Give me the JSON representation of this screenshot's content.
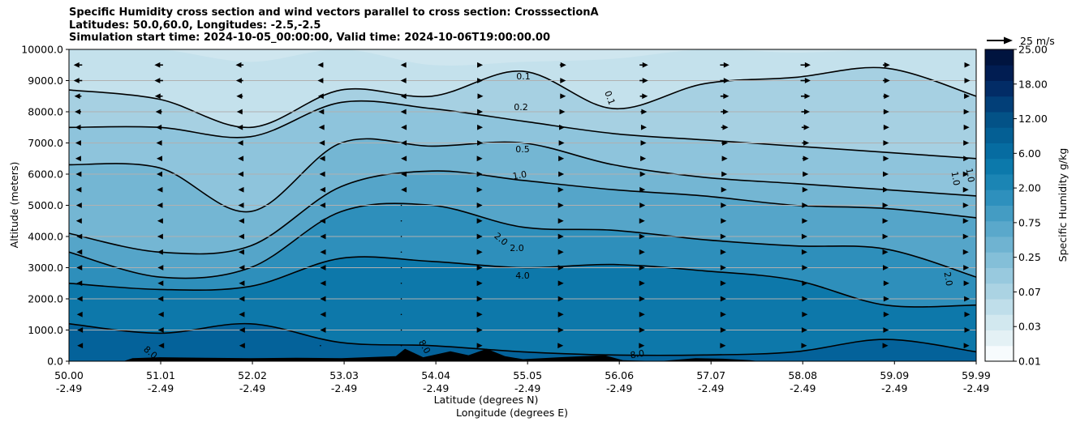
{
  "chart_data": {
    "type": "heatmap",
    "title_lines": [
      "Specific Humidity cross section and wind vectors parallel to cross section: CrosssectionA",
      "Latitudes: 50.0,60.0, Longitudes: -2.5,-2.5",
      "Simulation start time: 2024-10-05_00:00:00, Valid time: 2024-10-06T19:00:00.00"
    ],
    "xlabel_lines": [
      "Latitude (degrees N)",
      "Longitude (degrees E)"
    ],
    "ylabel": "Altitude (meters)",
    "ylim": [
      0,
      10000
    ],
    "xlim": [
      50.0,
      59.99
    ],
    "x_ticks": [
      {
        "lat": "50.00",
        "lon": "-2.49",
        "value": 50.0
      },
      {
        "lat": "51.01",
        "lon": "-2.49",
        "value": 51.01
      },
      {
        "lat": "52.02",
        "lon": "-2.49",
        "value": 52.02
      },
      {
        "lat": "53.03",
        "lon": "-2.49",
        "value": 53.03
      },
      {
        "lat": "54.04",
        "lon": "-2.49",
        "value": 54.04
      },
      {
        "lat": "55.05",
        "lon": "-2.49",
        "value": 55.05
      },
      {
        "lat": "56.06",
        "lon": "-2.49",
        "value": 56.06
      },
      {
        "lat": "57.07",
        "lon": "-2.49",
        "value": 57.07
      },
      {
        "lat": "58.08",
        "lon": "-2.49",
        "value": 58.08
      },
      {
        "lat": "59.09",
        "lon": "-2.49",
        "value": 59.09
      },
      {
        "lat": "59.99",
        "lon": "-2.49",
        "value": 59.99
      }
    ],
    "y_ticks": [
      {
        "label": "0.0",
        "value": 0
      },
      {
        "label": "1000.0",
        "value": 1000
      },
      {
        "label": "2000.0",
        "value": 2000
      },
      {
        "label": "3000.0",
        "value": 3000
      },
      {
        "label": "4000.0",
        "value": 4000
      },
      {
        "label": "5000.0",
        "value": 5000
      },
      {
        "label": "6000.0",
        "value": 6000
      },
      {
        "label": "7000.0",
        "value": 7000
      },
      {
        "label": "8000.0",
        "value": 8000
      },
      {
        "label": "9000.0",
        "value": 9000
      },
      {
        "label": "10000.0",
        "value": 10000
      }
    ],
    "grid": "horizontal",
    "colorbar": {
      "label": "Specific Humidity g/kg",
      "tick_labels": [
        "0.01",
        "0.03",
        "0.07",
        "0.25",
        "0.75",
        "2.00",
        "6.00",
        "12.00",
        "18.00",
        "25.00"
      ],
      "band_colors": [
        "#f7fbfd",
        "#e4f1f5",
        "#d2e8ef",
        "#bfdeea",
        "#abd3e3",
        "#98c9de",
        "#84bfd8",
        "#6fb3d1",
        "#5aa8cb",
        "#449cc3",
        "#2e90bd",
        "#1b85b4",
        "#0c79ab",
        "#066ca1",
        "#045f94",
        "#035287",
        "#023f78",
        "#022c66",
        "#011d52",
        "#00143f"
      ]
    },
    "wind_key": {
      "label": "25 m/s",
      "speed": 25
    },
    "contour_labels": [
      "0.1",
      "0.1",
      "0.2",
      "0.5",
      "1.0",
      "1.0",
      "1.0",
      "2.0",
      "2.0",
      "2.0",
      "4.0",
      "8.0",
      "8.0",
      "8.0"
    ],
    "humidity_layers": [
      {
        "level": "<0.1",
        "color": "#c4e1ec",
        "boundary_m": [
          10000,
          10000,
          9600,
          10000,
          9500,
          9600,
          9700,
          10000,
          9900,
          10000,
          10000
        ]
      },
      {
        "level": "0.1",
        "color": "#a6d0e2",
        "boundary_m": [
          8700,
          8400,
          7500,
          8700,
          8500,
          9300,
          8100,
          8900,
          9100,
          9400,
          8500
        ]
      },
      {
        "level": "0.2",
        "color": "#8ec4dc",
        "boundary_m": [
          7500,
          7500,
          7200,
          8300,
          8100,
          7700,
          7300,
          7100,
          6900,
          6700,
          6500
        ]
      },
      {
        "level": "0.5",
        "color": "#74b6d3",
        "boundary_m": [
          6300,
          6200,
          4800,
          7000,
          6900,
          7000,
          6300,
          5900,
          5700,
          5500,
          5300
        ]
      },
      {
        "level": "1.0",
        "color": "#55a5c9",
        "boundary_m": [
          4100,
          3500,
          3700,
          5600,
          6100,
          5800,
          5500,
          5300,
          5000,
          4900,
          4600
        ]
      },
      {
        "level": "2.0",
        "color": "#2e8fbb",
        "boundary_m": [
          3500,
          2700,
          3000,
          4800,
          5000,
          4300,
          4200,
          3900,
          3700,
          3600,
          2700
        ]
      },
      {
        "level": "4.0",
        "color": "#0d78aa",
        "boundary_m": [
          2500,
          2300,
          2400,
          3300,
          3200,
          3000,
          3100,
          2900,
          2600,
          1800,
          1800
        ]
      },
      {
        "level": "8.0",
        "color": "#04629a",
        "boundary_m": [
          1200,
          900,
          1200,
          600,
          500,
          300,
          200,
          200,
          300,
          700,
          300
        ]
      },
      {
        "level": "12.0",
        "color": "#034f8a",
        "boundary_m": [
          0,
          0,
          0,
          0,
          0,
          0,
          0,
          0,
          0,
          0,
          0
        ]
      }
    ],
    "wind_rows": [
      {
        "altitude_m": 9500,
        "u_ms": [
          -12,
          -12,
          -11,
          -8,
          -2,
          2,
          9,
          12,
          13,
          14,
          10,
          8
        ]
      },
      {
        "altitude_m": 9000,
        "u_ms": [
          -12,
          -12,
          -10,
          -8,
          -2,
          2,
          8,
          12,
          13,
          14,
          10,
          8
        ]
      },
      {
        "altitude_m": 8500,
        "u_ms": [
          -10,
          -11,
          -9,
          -7,
          -2,
          3,
          8,
          11,
          12,
          13,
          9,
          7
        ]
      },
      {
        "altitude_m": 8000,
        "u_ms": [
          -9,
          -9,
          -8,
          -6,
          -2,
          2,
          6,
          9,
          11,
          12,
          8,
          6
        ]
      },
      {
        "altitude_m": 7500,
        "u_ms": [
          -8,
          -8,
          -7,
          -5,
          -1,
          2,
          5,
          8,
          10,
          11,
          8,
          6
        ]
      },
      {
        "altitude_m": 7000,
        "u_ms": [
          -7,
          -7,
          -6,
          -4,
          -1,
          2,
          4,
          7,
          9,
          10,
          7,
          5
        ]
      },
      {
        "altitude_m": 6500,
        "u_ms": [
          -7,
          -6,
          -5,
          -3,
          -1,
          1,
          3,
          6,
          8,
          9,
          7,
          5
        ]
      },
      {
        "altitude_m": 6000,
        "u_ms": [
          -6,
          -6,
          -5,
          -3,
          -1,
          1,
          3,
          5,
          7,
          8,
          6,
          4
        ]
      },
      {
        "altitude_m": 5500,
        "u_ms": [
          -6,
          -5,
          -4,
          -2,
          -1,
          1,
          2,
          4,
          6,
          7,
          6,
          4
        ]
      },
      {
        "altitude_m": 5000,
        "u_ms": [
          -5,
          -5,
          -4,
          -2,
          0,
          1,
          2,
          4,
          5,
          6,
          5,
          4
        ]
      },
      {
        "altitude_m": 4500,
        "u_ms": [
          -5,
          -4,
          -3,
          -2,
          0,
          1,
          2,
          3,
          5,
          6,
          5,
          4
        ]
      },
      {
        "altitude_m": 4000,
        "u_ms": [
          -4,
          -4,
          -3,
          -1,
          0,
          1,
          2,
          3,
          4,
          5,
          5,
          4
        ]
      },
      {
        "altitude_m": 3500,
        "u_ms": [
          -4,
          -4,
          -3,
          -1,
          0,
          1,
          2,
          3,
          4,
          5,
          5,
          4
        ]
      },
      {
        "altitude_m": 3000,
        "u_ms": [
          -4,
          -3,
          -2,
          -1,
          0,
          1,
          2,
          3,
          4,
          6,
          6,
          5
        ]
      },
      {
        "altitude_m": 2500,
        "u_ms": [
          -4,
          -3,
          -2,
          -1,
          0,
          1,
          2,
          3,
          4,
          6,
          8,
          6
        ]
      },
      {
        "altitude_m": 2000,
        "u_ms": [
          -3,
          -3,
          -2,
          -1,
          0,
          1,
          2,
          3,
          4,
          6,
          8,
          7
        ]
      },
      {
        "altitude_m": 1500,
        "u_ms": [
          -3,
          -2,
          -2,
          -1,
          0,
          1,
          2,
          3,
          4,
          6,
          8,
          8
        ]
      },
      {
        "altitude_m": 1000,
        "u_ms": [
          -2,
          -2,
          -1,
          -1,
          0,
          1,
          2,
          3,
          4,
          5,
          7,
          8
        ]
      },
      {
        "altitude_m": 500,
        "u_ms": [
          -2,
          -1,
          -1,
          0,
          0,
          1,
          1,
          2,
          3,
          4,
          5,
          6
        ]
      }
    ],
    "terrain_m": [
      {
        "lat": 50.6,
        "h": 0
      },
      {
        "lat": 50.7,
        "h": 60
      },
      {
        "lat": 51.0,
        "h": 80
      },
      {
        "lat": 51.5,
        "h": 70
      },
      {
        "lat": 52.0,
        "h": 60
      },
      {
        "lat": 52.5,
        "h": 70
      },
      {
        "lat": 53.0,
        "h": 60
      },
      {
        "lat": 53.6,
        "h": 100
      },
      {
        "lat": 53.7,
        "h": 250
      },
      {
        "lat": 53.9,
        "h": 80
      },
      {
        "lat": 54.2,
        "h": 200
      },
      {
        "lat": 54.4,
        "h": 120
      },
      {
        "lat": 54.6,
        "h": 250
      },
      {
        "lat": 54.8,
        "h": 100
      },
      {
        "lat": 55.0,
        "h": 40
      },
      {
        "lat": 55.4,
        "h": 80
      },
      {
        "lat": 55.9,
        "h": 120
      },
      {
        "lat": 56.1,
        "h": 20
      },
      {
        "lat": 56.5,
        "h": 0
      },
      {
        "lat": 56.9,
        "h": 60
      },
      {
        "lat": 57.2,
        "h": 50
      },
      {
        "lat": 57.5,
        "h": 20
      },
      {
        "lat": 57.6,
        "h": 0
      }
    ]
  }
}
